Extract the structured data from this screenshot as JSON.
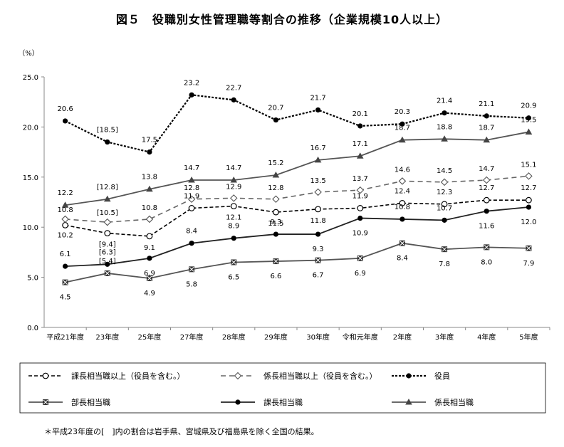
{
  "title": "図５　役職別女性管理職等割合の推移（企業規模10人以上）",
  "footnote": "＊平成23年度の[　]内の割合は岩手県、宮城県及び福島県を除く全国の結果。",
  "chart_data": {
    "type": "line",
    "ylabel": "（%）",
    "ylim": [
      0,
      25
    ],
    "yticks": [
      "0.0",
      "5.0",
      "10.0",
      "15.0",
      "20.0",
      "25.0"
    ],
    "categories": [
      "平成21年度",
      "23年度",
      "25年度",
      "27年度",
      "28年度",
      "29年度",
      "30年度",
      "令和元年度",
      "2年度",
      "3年度",
      "4年度",
      "5年度"
    ],
    "legend_position": "bottom",
    "series": [
      {
        "name": "課長相当職以上（役員を含む。）",
        "key": "kacho_ijo",
        "style": "dashed",
        "marker": "circle-open",
        "values": [
          10.2,
          9.4,
          9.1,
          11.9,
          12.1,
          11.5,
          11.8,
          11.9,
          12.4,
          12.3,
          12.7,
          12.7
        ],
        "labels": [
          "10.2",
          "[9.4]",
          "9.1",
          "11.9",
          "12.1",
          "11.5",
          "11.8",
          "11.9",
          "12.4",
          "12.3",
          "12.7",
          "12.7"
        ]
      },
      {
        "name": "係長相当職以上（役員を含む。）",
        "key": "kakari_ijo",
        "style": "dashed-gray",
        "marker": "diamond-open",
        "values": [
          10.8,
          10.5,
          10.8,
          12.8,
          12.9,
          12.8,
          13.5,
          13.7,
          14.6,
          14.5,
          14.7,
          15.1
        ],
        "labels": [
          "10.8",
          "[10.5]",
          "10.8",
          "12.8",
          "12.9",
          "12.8",
          "13.5",
          "13.7",
          "14.6",
          "14.5",
          "14.7",
          "15.1"
        ]
      },
      {
        "name": "役員",
        "key": "yakuin",
        "style": "dotted",
        "marker": "circle-filled",
        "values": [
          20.6,
          18.5,
          17.5,
          23.2,
          22.7,
          20.7,
          21.7,
          20.1,
          20.3,
          21.4,
          21.1,
          20.9
        ],
        "labels": [
          "20.6",
          "[18.5]",
          "17.5",
          "23.2",
          "22.7",
          "20.7",
          "21.7",
          "20.1",
          "20.3",
          "21.4",
          "21.1",
          "20.9"
        ]
      },
      {
        "name": "部長相当職",
        "key": "bucho",
        "style": "solid-gray",
        "marker": "square-x",
        "values": [
          4.5,
          5.4,
          4.9,
          5.8,
          6.5,
          6.6,
          6.7,
          6.9,
          8.4,
          7.8,
          8.0,
          7.9
        ],
        "labels": [
          "4.5",
          "[5.4]",
          "4.9",
          "5.8",
          "6.5",
          "6.6",
          "6.7",
          "6.9",
          "8.4",
          "7.8",
          "8.0",
          "7.9"
        ]
      },
      {
        "name": "課長相当職",
        "key": "kacho",
        "style": "solid-black",
        "marker": "circle-filled",
        "values": [
          6.1,
          6.3,
          6.9,
          8.4,
          8.9,
          9.3,
          9.3,
          10.9,
          10.8,
          10.7,
          11.6,
          12.0
        ],
        "labels": [
          "6.1",
          "[6.3]",
          "6.9",
          "8.4",
          "8.9",
          "9.3",
          "9.3",
          "10.9",
          "10.8",
          "10.7",
          "11.6",
          "12.0"
        ]
      },
      {
        "name": "係長相当職",
        "key": "kakari",
        "style": "solid-gray",
        "marker": "triangle",
        "values": [
          12.2,
          12.8,
          13.8,
          14.7,
          14.7,
          15.2,
          16.7,
          17.1,
          18.7,
          18.8,
          18.7,
          19.5
        ],
        "labels": [
          "12.2",
          "[12.8]",
          "13.8",
          "14.7",
          "14.7",
          "15.2",
          "16.7",
          "17.1",
          "18.7",
          "18.8",
          "18.7",
          "19.5"
        ]
      }
    ]
  }
}
